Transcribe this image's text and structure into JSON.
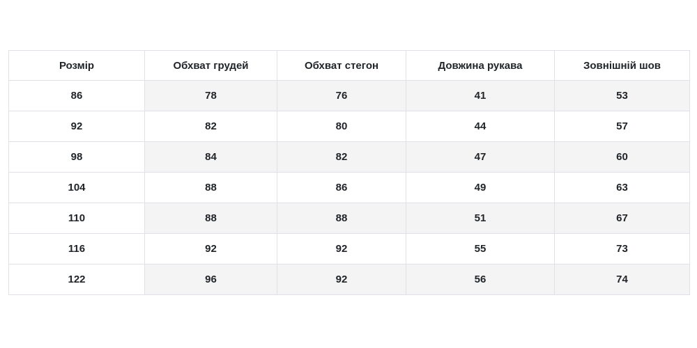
{
  "size_chart": {
    "columns": [
      "Розмір",
      "Обхват грудей",
      "Обхват стегон",
      "Довжина рукава",
      "Зовнішній шов"
    ],
    "rows": [
      [
        "86",
        "78",
        "76",
        "41",
        "53"
      ],
      [
        "92",
        "82",
        "80",
        "44",
        "57"
      ],
      [
        "98",
        "84",
        "82",
        "47",
        "60"
      ],
      [
        "104",
        "88",
        "86",
        "49",
        "63"
      ],
      [
        "110",
        "88",
        "88",
        "51",
        "67"
      ],
      [
        "116",
        "92",
        "92",
        "55",
        "73"
      ],
      [
        "122",
        "96",
        "92",
        "56",
        "74"
      ]
    ]
  },
  "colors": {
    "background": "#ffffff",
    "stripe": "#f4f4f5",
    "border": "#dee2e6",
    "text": "#212529"
  }
}
